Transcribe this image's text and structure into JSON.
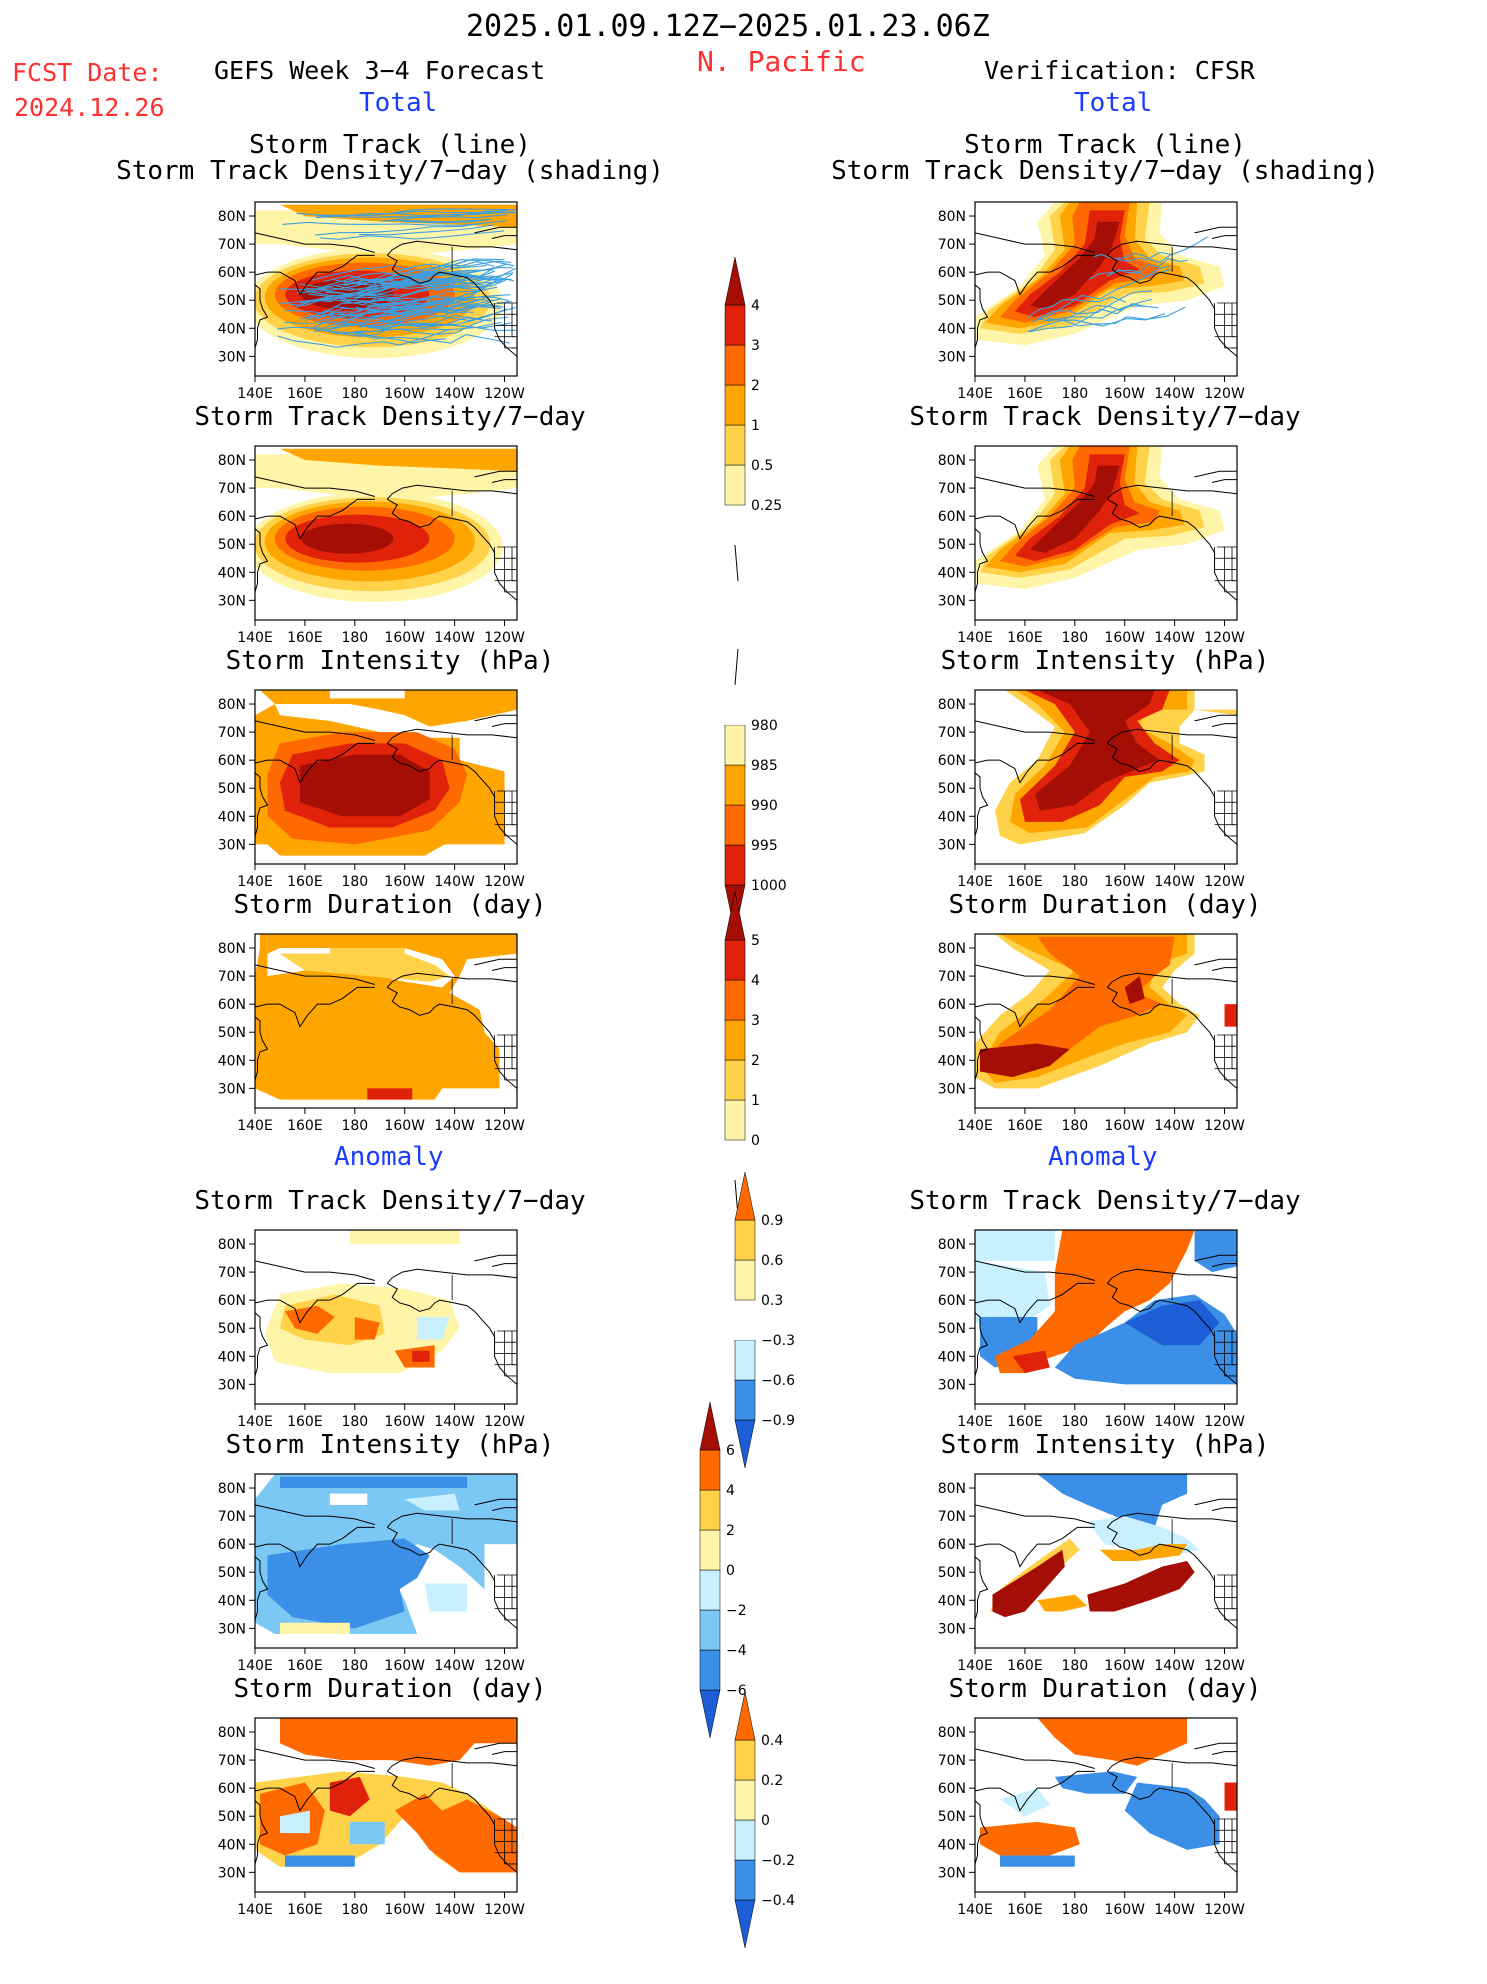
{
  "header": {
    "period": "2025.01.09.12Z−2025.01.23.06Z",
    "region": "N. Pacific",
    "fcst_label": "FCST Date:",
    "fcst_date": "2024.12.26",
    "left_title": "GEFS Week 3−4 Forecast",
    "right_title": "Verification: CFSR",
    "total_label_left": "Total",
    "total_label_right": "Total",
    "anomaly_label_left": "Anomaly",
    "anomaly_label_right": "Anomaly"
  },
  "panel_titles": {
    "track_line": "Storm Track (line)",
    "track_shading": "Storm Track Density/7−day (shading)",
    "density": "Storm Track Density/7−day",
    "intensity": "Storm Intensity (hPa)",
    "duration": "Storm Duration (day)"
  },
  "axes": {
    "lat_ticks": [
      "80N",
      "70N",
      "60N",
      "50N",
      "40N",
      "30N"
    ],
    "lon_ticks": [
      "140E",
      "160E",
      "180",
      "160W",
      "140W",
      "120W"
    ]
  },
  "colors": {
    "c0": "#fff5a8",
    "c1": "#ffd24a",
    "c2": "#ffa500",
    "c3": "#ff6a00",
    "c4": "#e0220a",
    "c5": "#a50e05",
    "n1": "#c8f0ff",
    "n2": "#7cc8f5",
    "n3": "#3b8fe6",
    "n4": "#1d5ed6",
    "track": "#3ca0e0"
  },
  "colorbars": {
    "density": [
      "0.25",
      "0.5",
      "1",
      "2",
      "3",
      "4"
    ],
    "intensity": [
      "1000",
      "995",
      "990",
      "985",
      "980"
    ],
    "duration": [
      "0",
      "1",
      "2",
      "3",
      "4",
      "5"
    ],
    "density_anom": [
      "−0.9",
      "−0.6",
      "−0.3",
      "0.3",
      "0.6",
      "0.9"
    ],
    "intensity_anom": [
      "−6",
      "−4",
      "−2",
      "0",
      "2",
      "4",
      "6"
    ],
    "duration_anom": [
      "−0.4",
      "−0.2",
      "0",
      "0.2",
      "0.4"
    ]
  },
  "chart_data": [
    {
      "type": "heatmap",
      "panel": "GEFS total storm track density with tracks",
      "title": "Storm Track (line) Storm Track Density/7−day (shading)",
      "peak_value": 4,
      "peak_location": "50N 180"
    },
    {
      "type": "heatmap",
      "panel": "CFSR total storm track density with tracks",
      "title": "Storm Track (line) Storm Track Density/7−day (shading)",
      "peak_value": 4,
      "peak_location": "45N 170E to 75N 170W"
    },
    {
      "type": "heatmap",
      "panel": "GEFS total density",
      "title": "Storm Track Density/7−day",
      "peak_value": 4
    },
    {
      "type": "heatmap",
      "panel": "CFSR total density",
      "title": "Storm Track Density/7−day",
      "peak_value": 4
    },
    {
      "type": "heatmap",
      "panel": "GEFS total intensity",
      "title": "Storm Intensity (hPa)",
      "min_value": 980
    },
    {
      "type": "heatmap",
      "panel": "CFSR total intensity",
      "title": "Storm Intensity (hPa)",
      "min_value": 980
    },
    {
      "type": "heatmap",
      "panel": "GEFS total duration",
      "title": "Storm Duration (day)",
      "typical_value": 3
    },
    {
      "type": "heatmap",
      "panel": "CFSR total duration",
      "title": "Storm Duration (day)",
      "typical_value": 3
    },
    {
      "type": "heatmap",
      "panel": "GEFS anomaly density",
      "title": "Storm Track Density/7−day",
      "range": [
        -0.9,
        0.9
      ]
    },
    {
      "type": "heatmap",
      "panel": "CFSR anomaly density",
      "title": "Storm Track Density/7−day",
      "range": [
        -0.9,
        0.9
      ]
    },
    {
      "type": "heatmap",
      "panel": "GEFS anomaly intensity",
      "title": "Storm Intensity (hPa)",
      "range": [
        -6,
        6
      ]
    },
    {
      "type": "heatmap",
      "panel": "CFSR anomaly intensity",
      "title": "Storm Intensity (hPa)",
      "range": [
        -6,
        6
      ]
    },
    {
      "type": "heatmap",
      "panel": "GEFS anomaly duration",
      "title": "Storm Duration (day)",
      "range": [
        -0.4,
        0.4
      ]
    },
    {
      "type": "heatmap",
      "panel": "CFSR anomaly duration",
      "title": "Storm Duration (day)",
      "range": [
        -0.4,
        0.4
      ]
    }
  ]
}
